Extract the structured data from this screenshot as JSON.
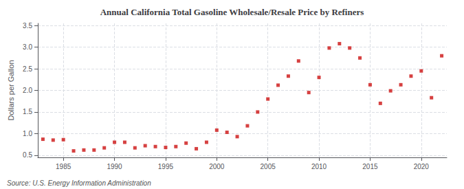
{
  "chart_data": {
    "type": "scatter",
    "title": "Annual California Total Gasoline Wholesale/Resale Price by Refiners",
    "ylabel": "Dollars per Gallon",
    "annotations": [
      "Source: U.S. Energy Information Administration"
    ],
    "color": "#cc1111",
    "marker": "square",
    "grid": true,
    "xlim": [
      1982.5,
      2022.5
    ],
    "ylim": [
      0.45,
      3.55
    ],
    "xticks": [
      1985,
      1990,
      1995,
      2000,
      2005,
      2010,
      2015,
      2020
    ],
    "yticks": [
      0.5,
      {
        "value": 1,
        "label": "1.0"
      },
      1.5,
      {
        "value": 2,
        "label": "2.0"
      },
      2.5,
      {
        "value": 3,
        "label": "3.0"
      },
      3.5
    ],
    "x": [
      1983,
      1984,
      1985,
      1986,
      1987,
      1988,
      1989,
      1990,
      1991,
      1992,
      1993,
      1994,
      1995,
      1996,
      1997,
      1998,
      1999,
      2000,
      2001,
      2002,
      2003,
      2004,
      2005,
      2006,
      2007,
      2008,
      2009,
      2010,
      2011,
      2012,
      2013,
      2014,
      2015,
      2016,
      2017,
      2018,
      2019,
      2020,
      2021,
      2022
    ],
    "values": [
      0.87,
      0.85,
      0.86,
      0.6,
      0.62,
      0.62,
      0.67,
      0.8,
      0.8,
      0.67,
      0.72,
      0.7,
      0.68,
      0.7,
      0.78,
      0.65,
      0.8,
      1.08,
      1.03,
      0.93,
      1.18,
      1.5,
      1.8,
      2.12,
      2.33,
      2.68,
      1.95,
      2.3,
      2.98,
      3.08,
      2.98,
      2.75,
      2.13,
      1.7,
      1.99,
      2.13,
      2.33,
      2.45,
      1.83,
      2.8
    ]
  }
}
